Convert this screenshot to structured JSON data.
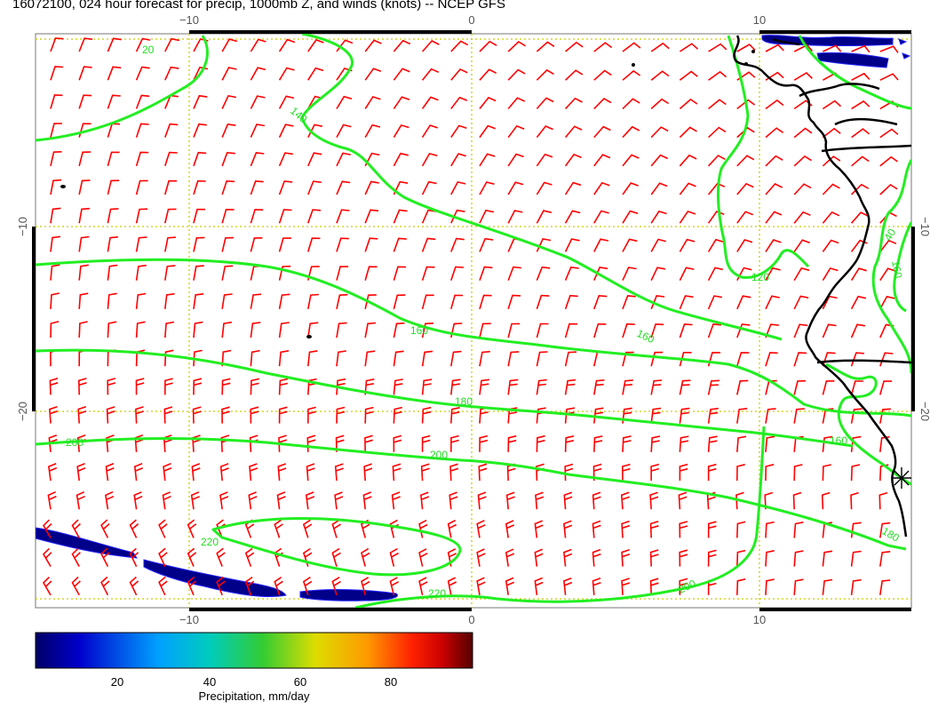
{
  "title": "16072100, 024 hour forecast for precip, 1000mb Z, and winds (knots) -- NCEP GFS",
  "axes": {
    "top_ticks": [
      "−10",
      "0",
      "10"
    ],
    "bottom_ticks": [
      "−10",
      "0",
      "10"
    ],
    "left_ticks": [
      "−10",
      "−20"
    ],
    "right_ticks": [
      "−10",
      "−20"
    ]
  },
  "contour_labels": [
    "20",
    "40",
    "140",
    "160",
    "160",
    "160",
    "160",
    "180",
    "180",
    "200",
    "200",
    "200",
    "220",
    "220",
    "120"
  ],
  "colorbar": {
    "label": "Precipitation, mm/day",
    "ticks": [
      "20",
      "40",
      "60",
      "80"
    ],
    "colors": [
      "#000066",
      "#0000cc",
      "#00a0ff",
      "#00ccbb",
      "#33cc33",
      "#dddd00",
      "#ff9900",
      "#ff2200",
      "#cc0000",
      "#550000"
    ]
  },
  "styles": {
    "contour_color": "#22ee22",
    "wind_color": "#ff0000",
    "coast_color": "#000000",
    "grid_color": "#cccc00"
  }
}
